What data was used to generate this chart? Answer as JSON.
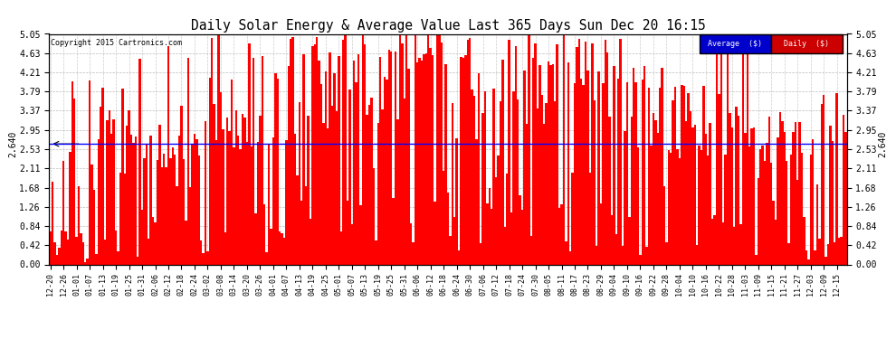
{
  "title": "Daily Solar Energy & Average Value Last 365 Days Sun Dec 20 16:15",
  "copyright": "Copyright 2015 Cartronics.com",
  "average_value": 2.64,
  "y_ticks": [
    0.0,
    0.42,
    0.84,
    1.26,
    1.68,
    2.11,
    2.53,
    2.95,
    3.37,
    3.79,
    4.21,
    4.63,
    5.05
  ],
  "y_max": 5.05,
  "bar_color": "#FF0000",
  "avg_line_color": "#0000FF",
  "background_color": "#FFFFFF",
  "grid_color": "#AAAAAA",
  "legend_avg_bg": "#0000CC",
  "legend_daily_bg": "#CC0000",
  "legend_text_color": "#FFFFFF",
  "x_labels": [
    "12-20",
    "12-26",
    "01-01",
    "01-07",
    "01-13",
    "01-19",
    "01-25",
    "01-31",
    "02-06",
    "02-12",
    "02-18",
    "02-24",
    "03-02",
    "03-08",
    "03-14",
    "03-20",
    "03-26",
    "04-01",
    "04-07",
    "04-13",
    "04-19",
    "04-25",
    "05-01",
    "05-07",
    "05-13",
    "05-19",
    "05-25",
    "05-31",
    "06-06",
    "06-12",
    "06-18",
    "06-24",
    "06-30",
    "07-06",
    "07-12",
    "07-18",
    "07-24",
    "07-30",
    "08-05",
    "08-11",
    "08-17",
    "08-23",
    "08-29",
    "09-04",
    "09-10",
    "09-16",
    "09-22",
    "09-28",
    "10-04",
    "10-10",
    "10-16",
    "10-22",
    "10-28",
    "11-03",
    "11-09",
    "11-15",
    "11-21",
    "11-27",
    "12-03",
    "12-09",
    "12-15"
  ],
  "avg_label_left": "← 2.640",
  "avg_label_right": "2.640 →",
  "n_days": 365
}
